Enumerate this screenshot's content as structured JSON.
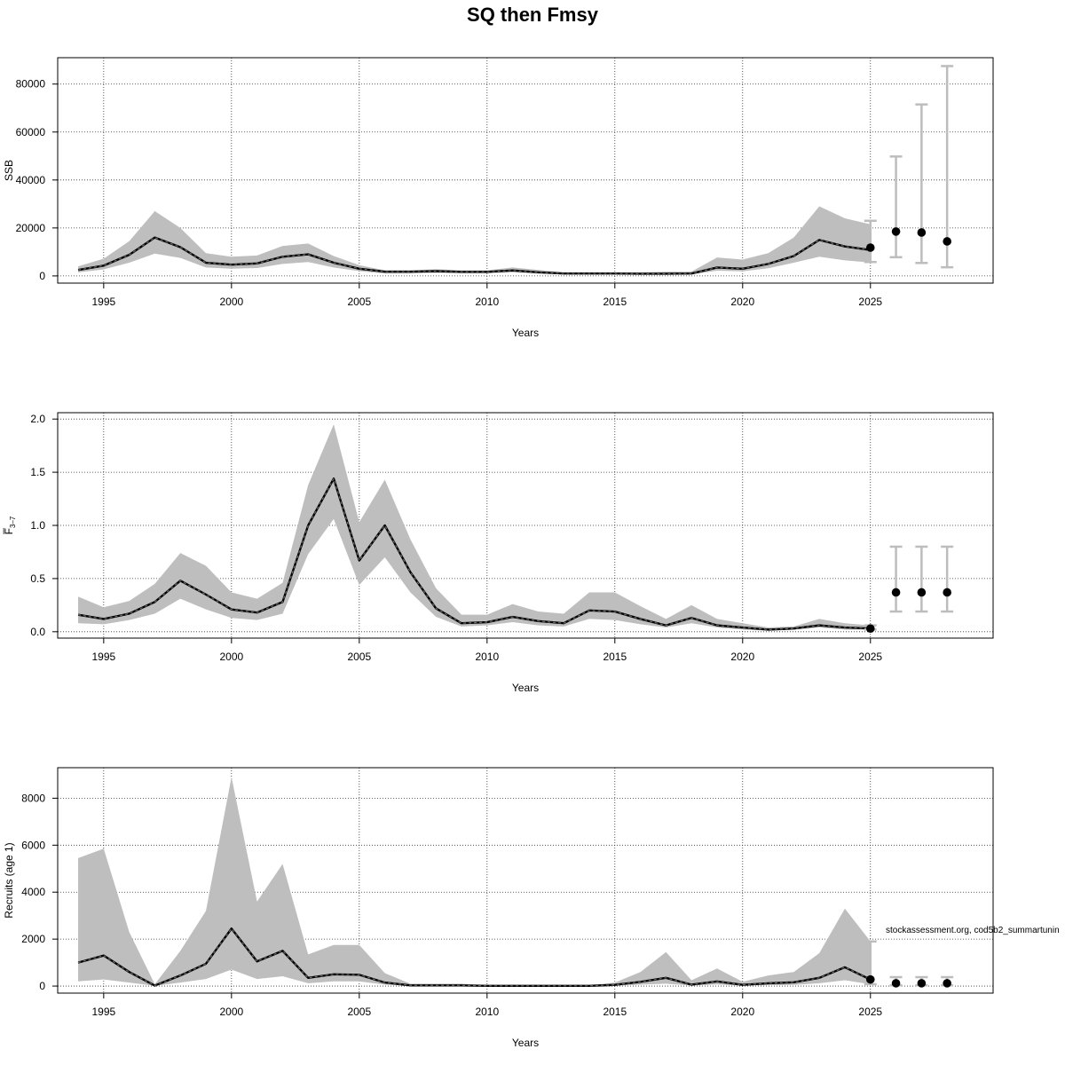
{
  "title": "SQ then Fmsy",
  "footnote": "stockassessment.org, cod5b2_summartunin",
  "chart_data": [
    {
      "type": "area",
      "ylabel": "SSB",
      "xlabel": "Years",
      "xlim": [
        1993.2,
        2029.8
      ],
      "ylim": [
        -3000,
        91000
      ],
      "xticks": [
        1995,
        2000,
        2005,
        2010,
        2015,
        2020,
        2025
      ],
      "yticks": [
        0,
        20000,
        40000,
        60000,
        80000
      ],
      "ytick_labels": [
        "0",
        "20000",
        "40000",
        "60000",
        "80000"
      ],
      "grid": true,
      "years": [
        1994,
        1995,
        1996,
        1997,
        1998,
        1999,
        2000,
        2001,
        2002,
        2003,
        2004,
        2005,
        2006,
        2007,
        2008,
        2009,
        2010,
        2011,
        2012,
        2013,
        2014,
        2015,
        2016,
        2017,
        2018,
        2019,
        2020,
        2021,
        2022,
        2023,
        2024,
        2025
      ],
      "estimate": [
        2500,
        4300,
        8800,
        16000,
        12000,
        5500,
        4700,
        5200,
        8000,
        9000,
        5500,
        3000,
        1800,
        1800,
        2000,
        1700,
        1700,
        2300,
        1500,
        1000,
        1000,
        1000,
        900,
        900,
        1000,
        3500,
        3000,
        5000,
        8300,
        15000,
        12300,
        10800
      ],
      "lower": [
        1500,
        2700,
        5500,
        9300,
        7500,
        3500,
        3000,
        3300,
        5000,
        5800,
        3500,
        2000,
        1000,
        1000,
        1300,
        1100,
        1100,
        1500,
        1000,
        600,
        600,
        600,
        500,
        500,
        600,
        2200,
        1900,
        3200,
        5500,
        8000,
        6500,
        5600
      ],
      "upper": [
        4000,
        7200,
        14500,
        27000,
        20000,
        9500,
        8000,
        8500,
        12500,
        13500,
        8300,
        4500,
        2300,
        2300,
        2800,
        2300,
        2300,
        3500,
        2500,
        1500,
        1500,
        1500,
        1500,
        1700,
        1800,
        7700,
        6800,
        9500,
        16000,
        29000,
        24000,
        21500
      ],
      "forecast": {
        "years": [
          2025,
          2026,
          2027,
          2028
        ],
        "median": [
          11800,
          18500,
          18100,
          14400
        ],
        "low": [
          5800,
          7800,
          5400,
          3600
        ],
        "high": [
          23000,
          49800,
          71500,
          87500
        ]
      }
    },
    {
      "type": "area",
      "ylabel": "F̅",
      "ylabel_sub": "3–7",
      "xlabel": "Years",
      "xlim": [
        1993.2,
        2029.8
      ],
      "ylim": [
        -0.06,
        2.06
      ],
      "xticks": [
        1995,
        2000,
        2005,
        2010,
        2015,
        2020,
        2025
      ],
      "yticks": [
        0,
        0.5,
        1,
        1.5,
        2
      ],
      "ytick_labels": [
        "0.0",
        "0.5",
        "1.0",
        "1.5",
        "2.0"
      ],
      "grid": true,
      "years": [
        1994,
        1995,
        1996,
        1997,
        1998,
        1999,
        2000,
        2001,
        2002,
        2003,
        2004,
        2005,
        2006,
        2007,
        2008,
        2009,
        2010,
        2011,
        2012,
        2013,
        2014,
        2015,
        2016,
        2017,
        2018,
        2019,
        2020,
        2021,
        2022,
        2023,
        2024,
        2025
      ],
      "estimate": [
        0.16,
        0.12,
        0.17,
        0.28,
        0.48,
        0.35,
        0.21,
        0.18,
        0.28,
        1.0,
        1.44,
        0.67,
        1.0,
        0.56,
        0.22,
        0.08,
        0.09,
        0.14,
        0.1,
        0.08,
        0.2,
        0.19,
        0.12,
        0.06,
        0.13,
        0.06,
        0.04,
        0.02,
        0.03,
        0.06,
        0.04,
        0.03
      ],
      "lower": [
        0.08,
        0.07,
        0.11,
        0.17,
        0.31,
        0.21,
        0.13,
        0.11,
        0.17,
        0.73,
        1.06,
        0.44,
        0.7,
        0.37,
        0.14,
        0.05,
        0.06,
        0.09,
        0.06,
        0.05,
        0.12,
        0.11,
        0.07,
        0.04,
        0.08,
        0.04,
        0.02,
        0.01,
        0.02,
        0.04,
        0.02,
        0.02
      ],
      "upper": [
        0.33,
        0.23,
        0.29,
        0.45,
        0.74,
        0.62,
        0.37,
        0.31,
        0.46,
        1.38,
        1.95,
        1.03,
        1.43,
        0.87,
        0.41,
        0.16,
        0.16,
        0.26,
        0.19,
        0.17,
        0.37,
        0.37,
        0.24,
        0.12,
        0.25,
        0.12,
        0.08,
        0.04,
        0.05,
        0.12,
        0.08,
        0.06
      ],
      "forecast": {
        "years": [
          2025,
          2026,
          2027,
          2028
        ],
        "median": [
          0.03,
          0.37,
          0.37,
          0.37
        ],
        "low": [
          0.02,
          0.19,
          0.19,
          0.19
        ],
        "high": [
          0.06,
          0.8,
          0.8,
          0.8
        ]
      }
    },
    {
      "type": "area",
      "ylabel": "Recruits (age 1)",
      "xlabel": "Years",
      "xlim": [
        1993.2,
        2029.8
      ],
      "ylim": [
        -300,
        9300
      ],
      "xticks": [
        1995,
        2000,
        2005,
        2010,
        2015,
        2020,
        2025
      ],
      "yticks": [
        0,
        2000,
        4000,
        6000,
        8000
      ],
      "ytick_labels": [
        "0",
        "2000",
        "4000",
        "6000",
        "8000"
      ],
      "grid": true,
      "years": [
        1994,
        1995,
        1996,
        1997,
        1998,
        1999,
        2000,
        2001,
        2002,
        2003,
        2004,
        2005,
        2006,
        2007,
        2008,
        2009,
        2010,
        2011,
        2012,
        2013,
        2014,
        2015,
        2016,
        2017,
        2018,
        2019,
        2020,
        2021,
        2022,
        2023,
        2024,
        2025
      ],
      "estimate": [
        1000,
        1300,
        600,
        20,
        450,
        950,
        2450,
        1050,
        1500,
        350,
        500,
        480,
        150,
        30,
        30,
        30,
        10,
        10,
        10,
        10,
        10,
        50,
        180,
        350,
        60,
        200,
        50,
        120,
        160,
        350,
        800,
        280
      ],
      "lower": [
        200,
        280,
        150,
        5,
        150,
        300,
        700,
        300,
        420,
        120,
        200,
        200,
        60,
        10,
        10,
        10,
        3,
        3,
        3,
        3,
        3,
        15,
        60,
        100,
        20,
        70,
        15,
        40,
        50,
        120,
        250,
        80
      ],
      "upper": [
        5450,
        5850,
        2300,
        80,
        1500,
        3200,
        8900,
        3600,
        5200,
        1350,
        1750,
        1750,
        550,
        100,
        100,
        100,
        30,
        30,
        30,
        30,
        30,
        150,
        600,
        1450,
        250,
        750,
        180,
        450,
        600,
        1400,
        3300,
        1900
      ],
      "forecast": {
        "years": [
          2025,
          2026,
          2027,
          2028
        ],
        "median": [
          280,
          120,
          120,
          120
        ],
        "low": [
          80,
          30,
          30,
          30
        ],
        "high": [
          1900,
          380,
          380,
          380
        ]
      }
    }
  ]
}
